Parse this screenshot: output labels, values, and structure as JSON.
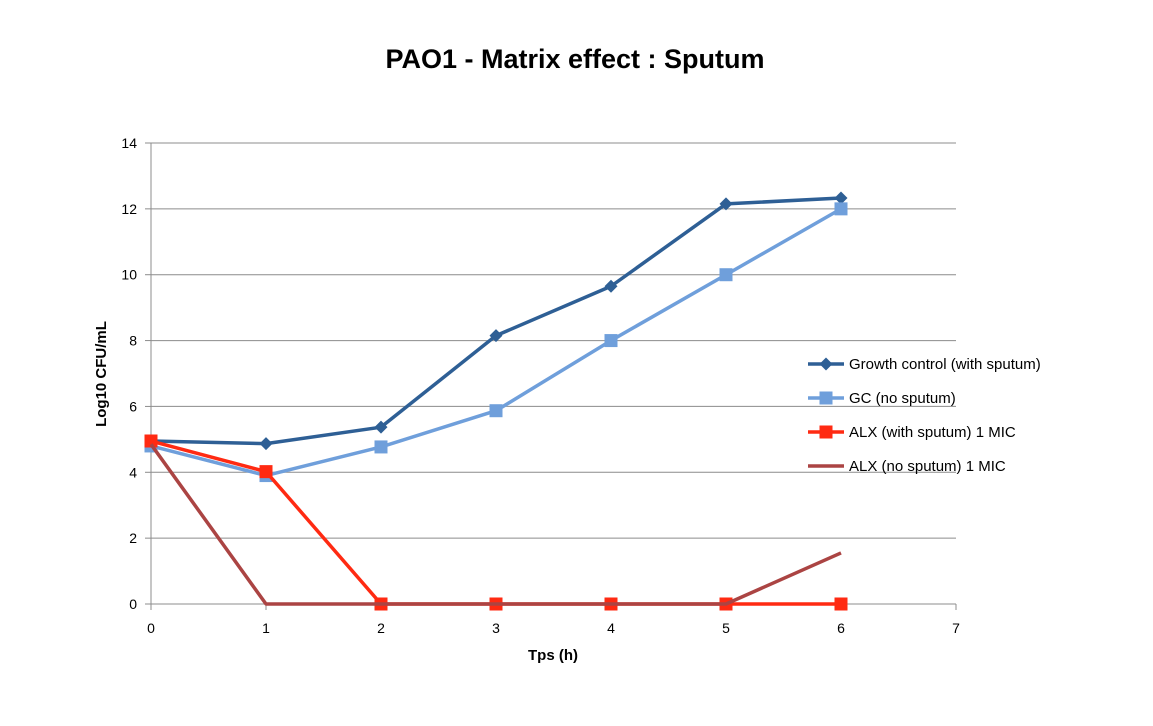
{
  "chart_data": {
    "type": "line",
    "title": "PAO1 - Matrix effect : Sputum",
    "xlabel": "Tps (h)",
    "ylabel": "Log10 CFU/mL",
    "xlim": [
      0,
      7
    ],
    "ylim": [
      0,
      14
    ],
    "x_ticks": [
      "0",
      "1",
      "2",
      "3",
      "4",
      "5",
      "6",
      "7"
    ],
    "y_ticks": [
      "0",
      "2",
      "4",
      "6",
      "8",
      "10",
      "12",
      "14"
    ],
    "grid": "horizontal",
    "legend_position": "right",
    "series": [
      {
        "name": "Growth control (with sputum)",
        "color": "#2e5f95",
        "marker": "diamond",
        "x": [
          0,
          1,
          2,
          3,
          4,
          5,
          6
        ],
        "y": [
          4.95,
          4.87,
          5.37,
          8.15,
          9.65,
          12.15,
          12.33
        ]
      },
      {
        "name": "GC (no sputum)",
        "color": "#6f9fdb",
        "marker": "square",
        "x": [
          0,
          1,
          2,
          3,
          4,
          5,
          6
        ],
        "y": [
          4.8,
          3.9,
          4.77,
          5.87,
          8.0,
          10.0,
          12.0
        ]
      },
      {
        "name": "ALX  (with sputum) 1 MIC",
        "color": "#ff2a12",
        "marker": "square",
        "x": [
          0,
          1,
          2,
          3,
          4,
          5,
          6
        ],
        "y": [
          4.95,
          4.02,
          0,
          0,
          0,
          0,
          0
        ]
      },
      {
        "name": "ALX (no sputum) 1 MIC",
        "color": "#ab4443",
        "marker": "none",
        "x": [
          0,
          1,
          2,
          3,
          4,
          5,
          6
        ],
        "y": [
          4.85,
          0,
          0,
          0,
          0,
          0,
          1.55
        ]
      }
    ]
  }
}
